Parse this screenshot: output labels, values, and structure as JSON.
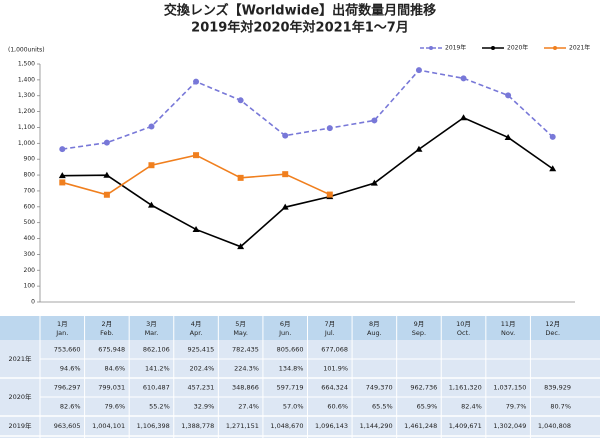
{
  "chart_data": {
    "type": "line",
    "title": "交換レンズ【Worldwide】出荷数量月間推移",
    "subtitle": "2019年対2020年対2021年1～7月",
    "y_label": "(1,000units)",
    "ylim": [
      0,
      1500
    ],
    "yticks": [
      0,
      100,
      200,
      300,
      400,
      500,
      600,
      700,
      800,
      900,
      {
        "value": 1000,
        "label": "1,000"
      },
      {
        "value": 1100,
        "label": "1,100"
      },
      {
        "value": 1200,
        "label": "1,200"
      },
      {
        "value": 1300,
        "label": "1,300"
      },
      {
        "value": 1400,
        "label": "1,400"
      },
      {
        "value": 1500,
        "label": "1,500"
      }
    ],
    "grid": false,
    "legend": "top-right",
    "series": [
      {
        "name": "2019年",
        "color": "#7878d8",
        "dashed": true,
        "marker": "circle",
        "values": [
          963.605,
          1004.101,
          1106.398,
          1388.778,
          1271.151,
          1048.67,
          1096.143,
          1144.29,
          1461.248,
          1409.671,
          1302.049,
          1040.808
        ]
      },
      {
        "name": "2020年",
        "color": "#000000",
        "dashed": false,
        "marker": "triangle",
        "values": [
          796.297,
          799.031,
          610.487,
          457.231,
          348.866,
          597.719,
          664.324,
          749.37,
          962.736,
          1161.32,
          1037.15,
          839.929
        ]
      },
      {
        "name": "2021年",
        "color": "#f07f1e",
        "dashed": false,
        "marker": "square",
        "values": [
          753.66,
          675.948,
          862.106,
          925.415,
          782.435,
          805.66,
          677.068,
          null,
          null,
          null,
          null,
          null
        ]
      }
    ]
  },
  "table": {
    "months": [
      "1月",
      "2月",
      "3月",
      "4月",
      "5月",
      "6月",
      "7月",
      "8月",
      "9月",
      "10月",
      "11月",
      "12月"
    ],
    "months_en": [
      "Jan.",
      "Feb.",
      "Mar.",
      "Apr.",
      "May.",
      "Jun.",
      "Jul.",
      "Aug.",
      "Sep.",
      "Oct.",
      "Nov.",
      "Dec."
    ],
    "rows": [
      {
        "label": "2021年",
        "values": [
          "753,660",
          "675,948",
          "862,106",
          "925,415",
          "782,435",
          "805,660",
          "677,068"
        ],
        "ratios": [
          "94.6%",
          "84.6%",
          "141.2%",
          "202.4%",
          "224.3%",
          "134.8%",
          "101.9%"
        ]
      },
      {
        "label": "2020年",
        "values": [
          "796,297",
          "799,031",
          "610,487",
          "457,231",
          "348,866",
          "597,719",
          "664,324",
          "749,370",
          "962,736",
          "1,161,320",
          "1,037,150",
          "839,929"
        ],
        "ratios": [
          "82.6%",
          "79.6%",
          "55.2%",
          "32.9%",
          "27.4%",
          "57.0%",
          "60.6%",
          "65.5%",
          "65.9%",
          "82.4%",
          "79.7%",
          "80.7%"
        ]
      },
      {
        "label": "2019年",
        "values": [
          "963,605",
          "1,004,101",
          "1,106,398",
          "1,388,778",
          "1,271,151",
          "1,048,670",
          "1,096,143",
          "1,144,290",
          "1,461,248",
          "1,409,671",
          "1,302,049",
          "1,040,808"
        ]
      }
    ]
  }
}
